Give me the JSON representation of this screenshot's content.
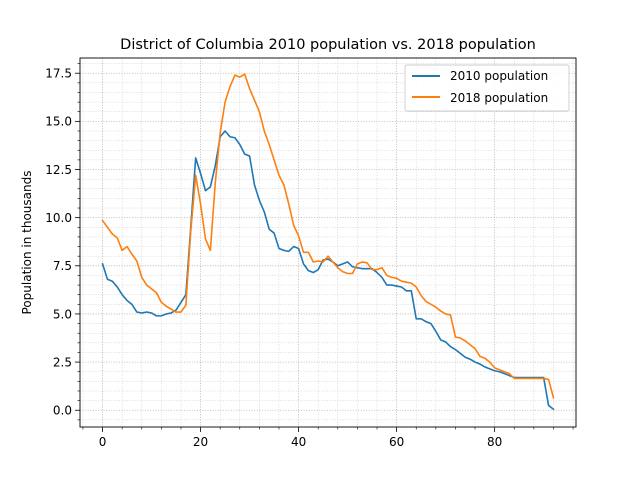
{
  "chart_data": {
    "type": "line",
    "title": "District of Columbia 2010 population vs. 2018 population",
    "xlabel": "",
    "ylabel": "Population in thousands",
    "xlim": [
      -4.6,
      96.6
    ],
    "ylim": [
      -0.87,
      18.29
    ],
    "x_ticks": [
      0,
      20,
      40,
      60,
      80
    ],
    "y_ticks": [
      0.0,
      2.5,
      5.0,
      7.5,
      10.0,
      12.5,
      15.0,
      17.5
    ],
    "y_tick_labels": [
      "0.0",
      "2.5",
      "5.0",
      "7.5",
      "10.0",
      "12.5",
      "15.0",
      "17.5"
    ],
    "grid": "major and minor, dotted",
    "legend_position": "top-right",
    "series": [
      {
        "name": "2010 population",
        "color": "#1f77b4",
        "values": [
          7.6,
          6.8,
          6.7,
          6.4,
          6.0,
          5.7,
          5.5,
          5.1,
          5.05,
          5.1,
          5.05,
          4.9,
          4.9,
          5.0,
          5.05,
          5.2,
          5.6,
          6.0,
          9.5,
          13.1,
          12.3,
          11.4,
          11.6,
          12.7,
          14.2,
          14.5,
          14.2,
          14.15,
          13.8,
          13.3,
          13.2,
          11.7,
          10.9,
          10.3,
          9.4,
          9.2,
          8.4,
          8.3,
          8.25,
          8.5,
          8.4,
          7.6,
          7.25,
          7.15,
          7.3,
          7.8,
          7.85,
          7.7,
          7.5,
          7.6,
          7.7,
          7.45,
          7.4,
          7.35,
          7.35,
          7.35,
          7.15,
          6.9,
          6.5,
          6.5,
          6.45,
          6.4,
          6.2,
          6.2,
          4.75,
          4.75,
          4.6,
          4.5,
          4.1,
          3.65,
          3.55,
          3.3,
          3.15,
          2.95,
          2.75,
          2.65,
          2.5,
          2.4,
          2.25,
          2.15,
          2.05,
          2.0,
          1.9,
          1.8,
          1.7,
          1.7,
          1.7,
          1.7,
          1.7,
          1.7,
          1.7,
          0.25,
          0.05
        ]
      },
      {
        "name": "2018 population",
        "color": "#ff7f0e",
        "values": [
          9.85,
          9.5,
          9.15,
          8.95,
          8.3,
          8.5,
          8.1,
          7.75,
          6.9,
          6.5,
          6.3,
          6.1,
          5.6,
          5.4,
          5.25,
          5.1,
          5.1,
          5.45,
          9.3,
          12.2,
          10.7,
          8.9,
          8.3,
          11.8,
          14.4,
          16.0,
          16.8,
          17.4,
          17.3,
          17.45,
          16.7,
          16.1,
          15.5,
          14.5,
          13.8,
          13.0,
          12.2,
          11.7,
          10.7,
          9.6,
          9.05,
          8.2,
          8.2,
          7.7,
          7.75,
          7.7,
          8.0,
          7.7,
          7.4,
          7.2,
          7.1,
          7.1,
          7.6,
          7.7,
          7.65,
          7.3,
          7.3,
          7.4,
          7.0,
          6.9,
          6.85,
          6.7,
          6.65,
          6.6,
          6.4,
          5.95,
          5.65,
          5.5,
          5.35,
          5.15,
          5.0,
          4.95,
          3.8,
          3.75,
          3.6,
          3.4,
          3.2,
          2.8,
          2.7,
          2.5,
          2.2,
          2.1,
          2.0,
          1.9,
          1.65,
          1.65,
          1.65,
          1.65,
          1.65,
          1.65,
          1.65,
          1.6,
          0.65
        ]
      }
    ]
  }
}
